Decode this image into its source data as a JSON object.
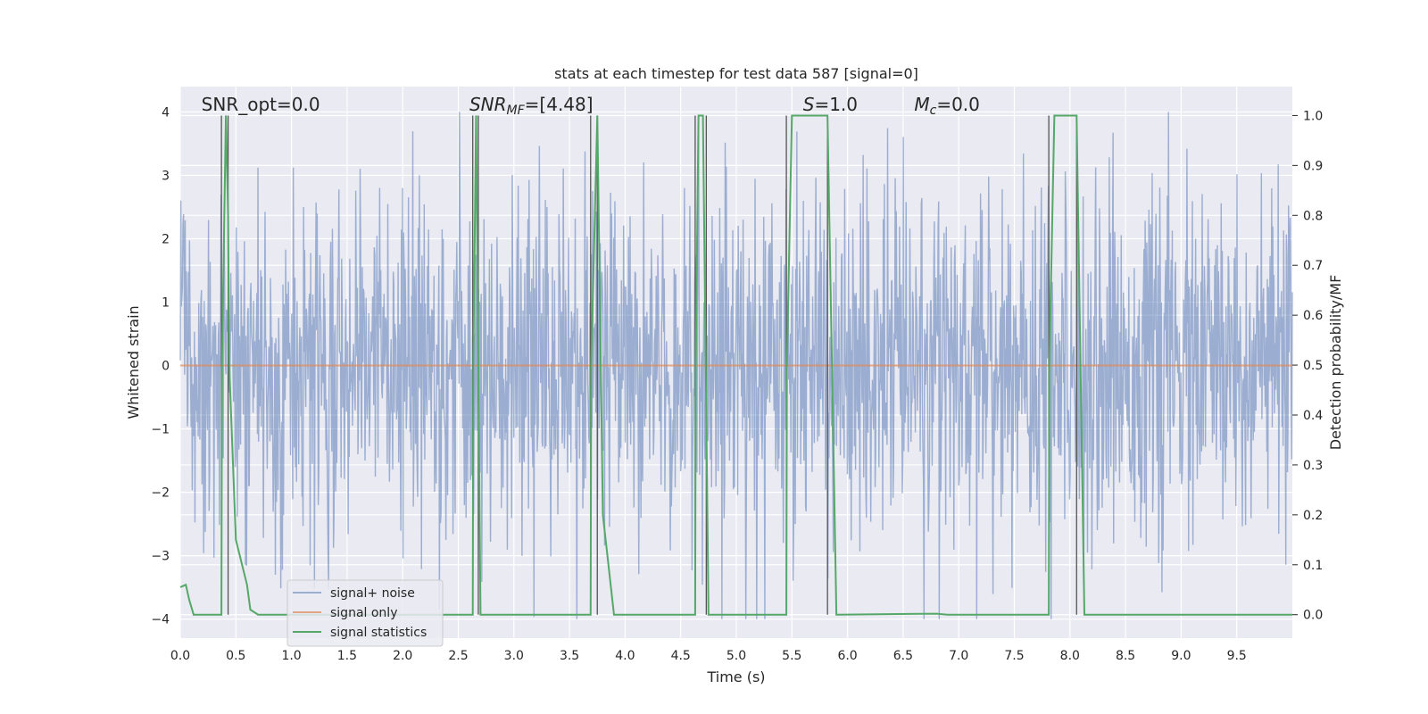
{
  "chart_data": {
    "type": "line",
    "title": "stats at each timestep for test data 587 [signal=0]",
    "xlabel": "Time (s)",
    "ylabel_left": "Whitened strain",
    "ylabel_right": "Detection probability/MF",
    "xlim": [
      0.0,
      10.0
    ],
    "ylim_left": [
      -4.3,
      4.4
    ],
    "ylim_right": [
      -0.047,
      1.058
    ],
    "xticks": [
      0.0,
      0.5,
      1.0,
      1.5,
      2.0,
      2.5,
      3.0,
      3.5,
      4.0,
      4.5,
      5.0,
      5.5,
      6.0,
      6.5,
      7.0,
      7.5,
      8.0,
      8.5,
      9.0,
      9.5
    ],
    "xtick_labels": [
      "0.0",
      "0.5",
      "1.0",
      "1.5",
      "2.0",
      "2.5",
      "3.0",
      "3.5",
      "4.0",
      "4.5",
      "5.0",
      "5.5",
      "6.0",
      "6.5",
      "7.0",
      "7.5",
      "8.0",
      "8.5",
      "9.0",
      "9.5"
    ],
    "yticks_left": [
      -4,
      -3,
      -2,
      -1,
      0,
      1,
      2,
      3,
      4
    ],
    "ytick_labels_left": [
      "−4",
      "−3",
      "−2",
      "−1",
      "0",
      "1",
      "2",
      "3",
      "4"
    ],
    "yticks_right": [
      0.0,
      0.1,
      0.2,
      0.3,
      0.4,
      0.5,
      0.6,
      0.7,
      0.8,
      0.9,
      1.0
    ],
    "ytick_labels_right": [
      "0.0",
      "0.1",
      "0.2",
      "0.3",
      "0.4",
      "0.5",
      "0.6",
      "0.7",
      "0.8",
      "0.9",
      "1.0"
    ],
    "grid": true,
    "legend_placement": "lower-left",
    "annotations": [
      {
        "text": "SNR_opt=0.0",
        "x": 0.19
      },
      {
        "text": "SNR",
        "sub": "MF",
        "rest": "=[4.48]",
        "italic": true,
        "x": 2.6
      },
      {
        "text": "S",
        "rest": "=1.0",
        "italic": true,
        "x": 5.6
      },
      {
        "text": "M",
        "sub": "c",
        "rest": "=0.0",
        "italic": true,
        "x": 6.6
      }
    ],
    "series": [
      {
        "name": "signal+ noise",
        "color": "#4c72b0",
        "kind": "noise",
        "n_points": 2048,
        "std": 1.0,
        "max_abs": 4.0
      },
      {
        "name": "signal only",
        "color": "#dd8452",
        "kind": "flat",
        "value": 0.0
      },
      {
        "name": "signal statistics",
        "color": "#55a868",
        "axis": "right",
        "x": [
          0.0,
          0.05,
          0.08,
          0.12,
          0.37,
          0.375,
          0.41,
          0.43,
          0.44,
          0.5,
          0.6,
          0.63,
          0.7,
          2.63,
          2.635,
          2.66,
          2.7,
          3.69,
          3.695,
          3.75,
          3.8,
          3.9,
          4.63,
          4.635,
          4.66,
          4.7,
          4.75,
          4.8,
          5.45,
          5.455,
          5.5,
          5.82,
          5.9,
          6.8,
          6.9,
          7.81,
          7.815,
          7.86,
          8.06,
          8.13,
          10.0
        ],
        "y": [
          0.055,
          0.06,
          0.03,
          0.0,
          0.0,
          0.5,
          1.0,
          0.8,
          0.5,
          0.15,
          0.06,
          0.01,
          0.0,
          0.0,
          0.5,
          1.0,
          0.0,
          0.0,
          0.5,
          1.0,
          0.2,
          0.0,
          0.0,
          0.5,
          1.0,
          1.0,
          0.0,
          0.0,
          0.0,
          0.5,
          1.0,
          1.0,
          0.0,
          0.002,
          0.0,
          0.0,
          0.5,
          1.0,
          1.0,
          0.0,
          0.0
        ]
      }
    ],
    "vlines": [
      {
        "x": 0.37,
        "color": "#555555"
      },
      {
        "x": 0.43,
        "color": "#555555"
      },
      {
        "x": 2.63,
        "color": "#555555"
      },
      {
        "x": 2.68,
        "color": "#555555"
      },
      {
        "x": 3.69,
        "color": "#555555"
      },
      {
        "x": 3.75,
        "color": "#555555"
      },
      {
        "x": 4.63,
        "color": "#555555"
      },
      {
        "x": 4.73,
        "color": "#555555"
      },
      {
        "x": 5.45,
        "color": "#555555"
      },
      {
        "x": 5.82,
        "color": "#555555"
      },
      {
        "x": 7.81,
        "color": "#555555"
      },
      {
        "x": 8.06,
        "color": "#555555"
      }
    ],
    "legend": [
      "signal+ noise",
      "signal only",
      "signal statistics"
    ]
  }
}
